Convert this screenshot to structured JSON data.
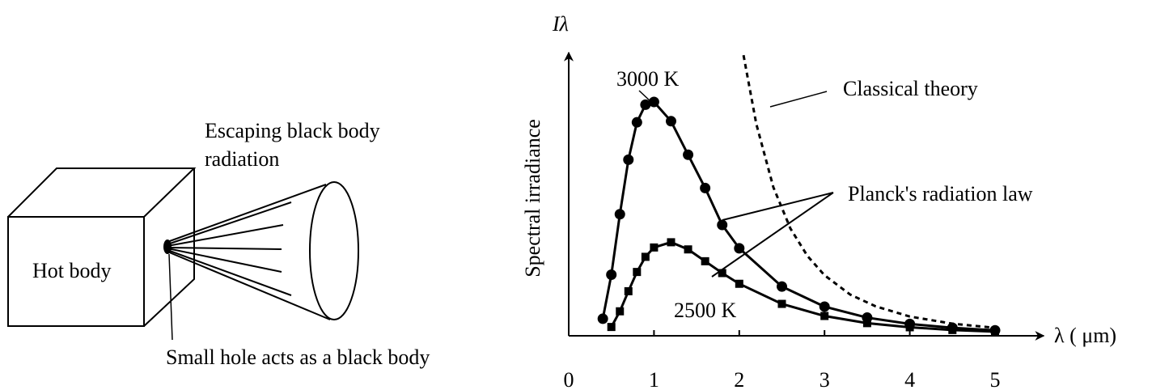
{
  "diagram": {
    "radiation_label": [
      "Escaping black body",
      "radiation"
    ],
    "body_label": "Hot body",
    "hole_label": "Small hole acts as a black body"
  },
  "chart_data": {
    "type": "line",
    "y_symbol": "Iλ",
    "ylabel": "Spectral irradiance",
    "xlabel": "λ ( μm)",
    "xlim": [
      0,
      5.4
    ],
    "xticks": [
      0,
      1,
      2,
      3,
      4,
      5
    ],
    "ylim": [
      0,
      100
    ],
    "annotation": "Planck's radiation law",
    "series": [
      {
        "name": "3000 K",
        "color": "#000000",
        "marker": "circle",
        "line_style": "solid",
        "x": [
          0.4,
          0.5,
          0.6,
          0.7,
          0.8,
          0.9,
          1.0,
          1.2,
          1.4,
          1.6,
          1.8,
          2.0,
          2.5,
          3.0,
          3.5,
          4.0,
          4.5,
          5.0
        ],
        "values": [
          6.2,
          22.2,
          44.2,
          64,
          77.6,
          84,
          85,
          78,
          65.8,
          53.7,
          40.3,
          31.8,
          17.9,
          10.6,
          6.6,
          4.3,
          2.9,
          2.0
        ]
      },
      {
        "name": "2500 K",
        "color": "#000000",
        "marker": "square",
        "line_style": "solid",
        "x": [
          0.5,
          0.6,
          0.7,
          0.8,
          0.9,
          1.0,
          1.2,
          1.4,
          1.6,
          1.8,
          2.0,
          2.5,
          3.0,
          3.5,
          4.0,
          4.5,
          5.0
        ],
        "values": [
          3.2,
          8.9,
          16.2,
          23.2,
          28.7,
          32.1,
          34,
          31.4,
          27.1,
          22.8,
          18.9,
          11.6,
          7.2,
          4.6,
          3.1,
          2.1,
          1.5
        ]
      },
      {
        "name": "Classical theory",
        "color": "#000000",
        "marker": "none",
        "line_style": "dashed",
        "x": [
          2.05,
          2.2,
          2.4,
          2.6,
          2.8,
          3.0,
          3.3,
          3.6,
          4.0,
          4.5,
          5.0
        ],
        "values": [
          102,
          77,
          54,
          39,
          29,
          22,
          15,
          10.7,
          7,
          4.4,
          2.9
        ]
      }
    ]
  }
}
